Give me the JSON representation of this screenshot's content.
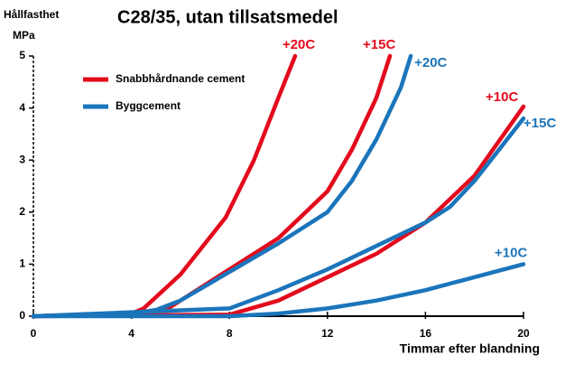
{
  "chart_data": {
    "type": "line",
    "title": "C28/35, utan tillsatsmedel",
    "ylabel": [
      "Hållfasthet",
      "MPa"
    ],
    "xlabel": "Timmar efter blandning",
    "xlim": [
      0,
      20
    ],
    "xticks": [
      0,
      4,
      8,
      12,
      16,
      20
    ],
    "ylim": [
      0,
      5
    ],
    "yticks": [
      0,
      1,
      2,
      3,
      4,
      5
    ],
    "grid": false,
    "series": [
      {
        "name": "Snabbhårdnande cement",
        "color": "#e30b1c",
        "curves": [
          {
            "label": "+20C",
            "x": [
              0,
              4,
              4.5,
              6,
              7.85,
              9,
              10,
              10.68
            ],
            "values": [
              0,
              0.05,
              0.15,
              0.8,
              1.9,
              3.0,
              4.2,
              5.0
            ]
          },
          {
            "label": "+15C",
            "x": [
              0,
              4,
              5.5,
              8,
              10,
              11,
              12,
              13,
              14,
              14.55
            ],
            "values": [
              0,
              0.05,
              0.15,
              0.9,
              1.5,
              1.95,
              2.4,
              3.2,
              4.2,
              5.0
            ]
          },
          {
            "label": "+10C",
            "x": [
              0,
              8,
              10,
              12,
              14,
              16,
              18,
              20
            ],
            "values": [
              0,
              0.03,
              0.3,
              0.75,
              1.2,
              1.8,
              2.7,
              4.03
            ]
          }
        ]
      },
      {
        "name": "Byggcement",
        "color": "#1b75bb",
        "curves": [
          {
            "label": "+20C",
            "x": [
              0,
              4,
              5,
              6,
              8,
              10,
              12,
              13,
              14,
              15,
              15.4
            ],
            "values": [
              0,
              0.05,
              0.12,
              0.3,
              0.85,
              1.4,
              2.0,
              2.6,
              3.4,
              4.4,
              5.0
            ]
          },
          {
            "label": "+15C",
            "x": [
              0,
              8,
              10,
              12,
              14,
              16,
              17,
              18,
              19,
              20
            ],
            "values": [
              0,
              0.15,
              0.5,
              0.9,
              1.35,
              1.8,
              2.1,
              2.6,
              3.2,
              3.8
            ]
          },
          {
            "label": "+10C",
            "x": [
              0,
              8,
              10,
              12,
              14,
              16,
              18,
              20
            ],
            "values": [
              0,
              0,
              0.05,
              0.15,
              0.3,
              0.5,
              0.75,
              1.0
            ]
          }
        ]
      }
    ]
  }
}
